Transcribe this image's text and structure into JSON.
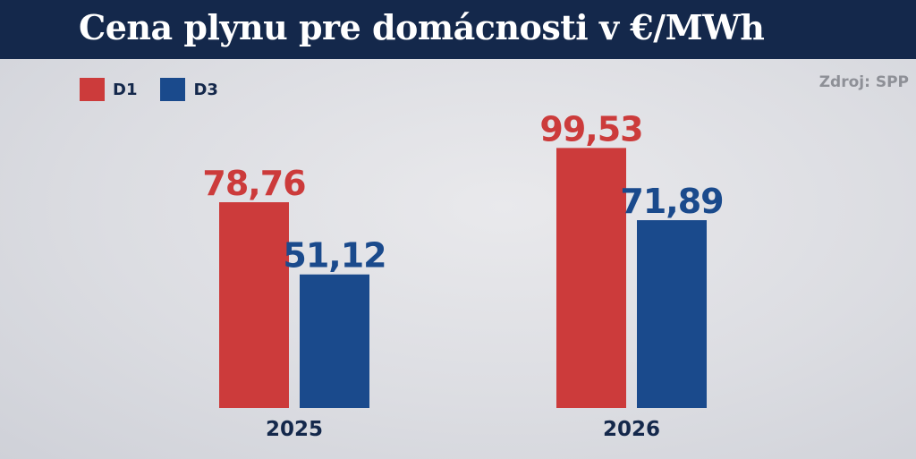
{
  "header": {
    "title": "Cena plynu pre domácnosti v €/MWh"
  },
  "source": "Zdroj: SPP",
  "colors": {
    "header_bg": "#14284b",
    "D1": "#cc3b3b",
    "D3": "#1a4a8c"
  },
  "chart_data": {
    "type": "bar",
    "title": "Cena plynu pre domácnosti v €/MWh",
    "xlabel": "",
    "ylabel": "",
    "categories": [
      "2025",
      "2026"
    ],
    "series": [
      {
        "name": "D1",
        "values": [
          78.76,
          99.53
        ],
        "labels": [
          "78,76",
          "99,53"
        ],
        "color": "#cc3b3b"
      },
      {
        "name": "D3",
        "values": [
          51.12,
          71.89
        ],
        "labels": [
          "51,12",
          "71,89"
        ],
        "color": "#1a4a8c"
      }
    ],
    "ylim": [
      0,
      100
    ],
    "grid": false,
    "legend": "top-left"
  }
}
